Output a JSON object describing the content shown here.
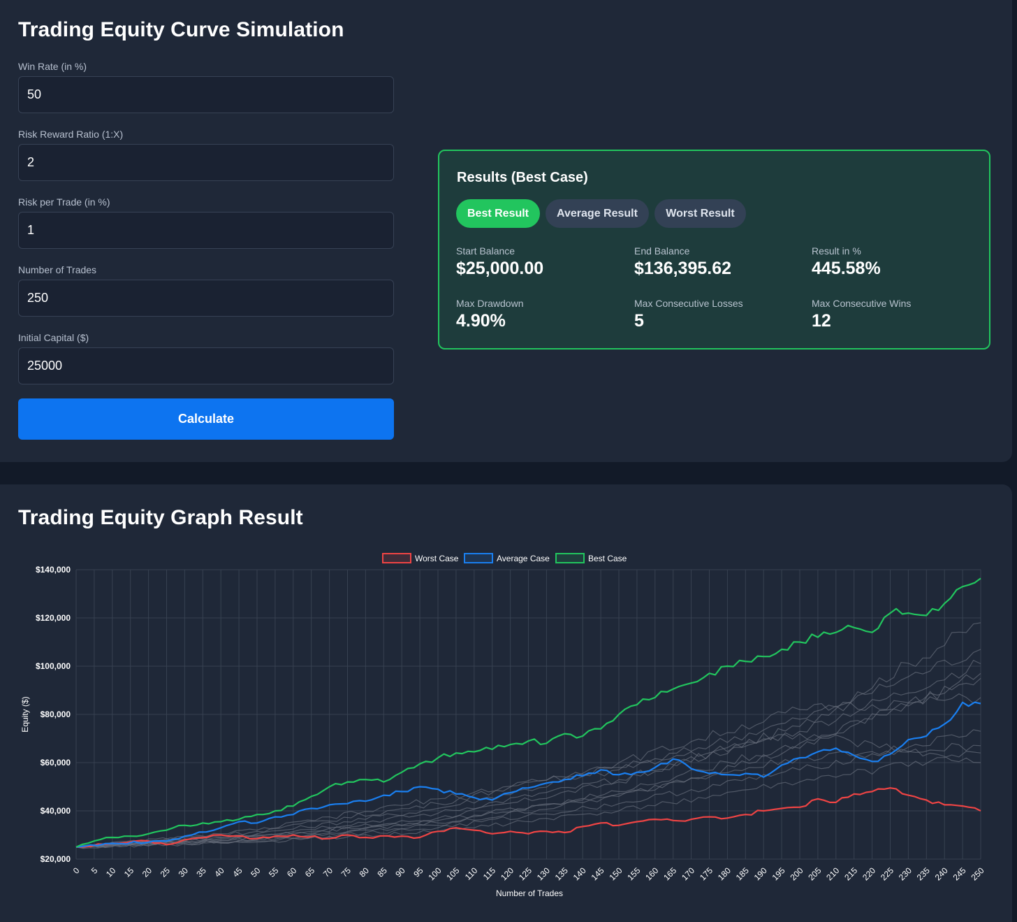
{
  "form": {
    "title": "Trading Equity Curve Simulation",
    "fields": [
      {
        "label": "Win Rate (in %)",
        "value": "50"
      },
      {
        "label": "Risk Reward Ratio (1:X)",
        "value": "2"
      },
      {
        "label": "Risk per Trade (in %)",
        "value": "1"
      },
      {
        "label": "Number of Trades",
        "value": "250"
      },
      {
        "label": "Initial Capital ($)",
        "value": "25000"
      }
    ],
    "calculate_label": "Calculate"
  },
  "results": {
    "title": "Results (Best Case)",
    "tabs": [
      "Best Result",
      "Average Result",
      "Worst Result"
    ],
    "active_tab": 0,
    "stats": {
      "start_balance": {
        "label": "Start Balance",
        "value": "$25,000.00"
      },
      "end_balance": {
        "label": "End Balance",
        "value": "$136,395.62"
      },
      "result_pct": {
        "label": "Result in %",
        "value": "445.58%"
      },
      "max_drawdown": {
        "label": "Max Drawdown",
        "value": "4.90%"
      },
      "max_consec_losses": {
        "label": "Max Consecutive Losses",
        "value": "5"
      },
      "max_consec_wins": {
        "label": "Max Consecutive Wins",
        "value": "12"
      }
    },
    "accent_color": "#22c55e"
  },
  "graph": {
    "title": "Trading Equity Graph Result"
  },
  "chart_data": {
    "type": "line",
    "xlabel": "Number of Trades",
    "ylabel": "Equity ($)",
    "xlim": [
      0,
      250
    ],
    "ylim": [
      20000,
      140000
    ],
    "x_ticks": [
      0,
      5,
      10,
      15,
      20,
      25,
      30,
      35,
      40,
      45,
      50,
      55,
      60,
      65,
      70,
      75,
      80,
      85,
      90,
      95,
      100,
      105,
      110,
      115,
      120,
      125,
      130,
      135,
      140,
      145,
      150,
      155,
      160,
      165,
      170,
      175,
      180,
      185,
      190,
      195,
      200,
      205,
      210,
      215,
      220,
      225,
      230,
      235,
      240,
      245,
      250
    ],
    "y_ticks": [
      {
        "value": 20000,
        "label": "$20,000"
      },
      {
        "value": 40000,
        "label": "$40,000"
      },
      {
        "value": 60000,
        "label": "$60,000"
      },
      {
        "value": 80000,
        "label": "$80,000"
      },
      {
        "value": 100000,
        "label": "$100,000"
      },
      {
        "value": 120000,
        "label": "$120,000"
      },
      {
        "value": 140000,
        "label": "$140,000"
      }
    ],
    "grid": true,
    "legend_position": "top-center",
    "series": [
      {
        "name": "Worst Case",
        "color": "#ef4444",
        "x": [
          0,
          10,
          20,
          25,
          30,
          40,
          50,
          55,
          60,
          70,
          75,
          80,
          90,
          95,
          100,
          105,
          110,
          115,
          120,
          125,
          130,
          135,
          140,
          145,
          150,
          155,
          160,
          165,
          170,
          175,
          180,
          185,
          190,
          195,
          200,
          205,
          210,
          215,
          220,
          225,
          230,
          235,
          240,
          245,
          250
        ],
        "y": [
          25000,
          26500,
          27500,
          26000,
          28000,
          30000,
          28500,
          29500,
          30000,
          28500,
          30000,
          29000,
          29500,
          29000,
          31500,
          33000,
          32000,
          30500,
          31500,
          30500,
          31500,
          31000,
          33500,
          35000,
          34000,
          35500,
          36500,
          36000,
          36500,
          37500,
          37000,
          38500,
          40000,
          41000,
          41500,
          45000,
          43500,
          47000,
          48000,
          49500,
          46500,
          44500,
          42500,
          42000,
          40000
        ]
      },
      {
        "name": "Average Case",
        "color": "#1a7ff0",
        "x": [
          0,
          10,
          20,
          25,
          30,
          40,
          45,
          50,
          55,
          60,
          65,
          70,
          75,
          80,
          85,
          90,
          95,
          100,
          105,
          110,
          115,
          120,
          125,
          130,
          135,
          140,
          145,
          150,
          155,
          160,
          165,
          170,
          175,
          180,
          185,
          190,
          195,
          200,
          205,
          210,
          215,
          220,
          225,
          230,
          235,
          240,
          245,
          250
        ],
        "y": [
          25000,
          26500,
          27000,
          27500,
          29500,
          33000,
          35500,
          35000,
          37500,
          38500,
          41000,
          42500,
          43000,
          44000,
          46500,
          48000,
          50000,
          49000,
          47000,
          45500,
          44500,
          47500,
          49500,
          51500,
          53000,
          54500,
          57000,
          55000,
          56000,
          58000,
          61500,
          57500,
          55500,
          55000,
          55500,
          54000,
          59000,
          62000,
          64500,
          66000,
          63000,
          60500,
          63500,
          69500,
          71000,
          76000,
          85000,
          84500
        ]
      },
      {
        "name": "Best Case",
        "color": "#22c55e",
        "x": [
          0,
          5,
          10,
          15,
          20,
          25,
          30,
          35,
          40,
          45,
          50,
          55,
          60,
          65,
          70,
          75,
          80,
          85,
          90,
          95,
          100,
          105,
          110,
          115,
          120,
          125,
          130,
          135,
          140,
          145,
          150,
          155,
          160,
          165,
          170,
          175,
          180,
          185,
          190,
          195,
          200,
          205,
          210,
          215,
          220,
          225,
          230,
          235,
          240,
          245,
          250
        ],
        "y": [
          25000,
          27500,
          29000,
          29500,
          30500,
          32000,
          34000,
          35000,
          35500,
          36500,
          38500,
          40000,
          42000,
          46000,
          50000,
          52000,
          53000,
          52000,
          56000,
          59500,
          62000,
          64000,
          64500,
          65500,
          67500,
          69000,
          68000,
          72000,
          71000,
          74000,
          80000,
          84000,
          87000,
          90500,
          93000,
          97000,
          100000,
          102000,
          104000,
          107000,
          110000,
          112000,
          114000,
          116000,
          114000,
          122000,
          122000,
          121000,
          126000,
          133000,
          136400
        ]
      }
    ],
    "gray_series": [
      {
        "x": [
          0,
          50,
          100,
          150,
          200,
          250
        ],
        "y": [
          25000,
          29000,
          37000,
          52000,
          75000,
          118000
        ]
      },
      {
        "x": [
          0,
          50,
          100,
          150,
          200,
          250
        ],
        "y": [
          25000,
          30500,
          41000,
          57000,
          78000,
          107000
        ]
      },
      {
        "x": [
          0,
          50,
          100,
          150,
          200,
          250
        ],
        "y": [
          25000,
          28000,
          34000,
          46000,
          66000,
          97000
        ]
      },
      {
        "x": [
          0,
          50,
          100,
          150,
          200,
          250
        ],
        "y": [
          25000,
          31500,
          43000,
          60000,
          82000,
          87000
        ]
      },
      {
        "x": [
          0,
          50,
          100,
          150,
          200,
          250
        ],
        "y": [
          25000,
          27500,
          33000,
          43000,
          57000,
          73000
        ]
      },
      {
        "x": [
          0,
          50,
          100,
          150,
          200,
          250
        ],
        "y": [
          25000,
          29500,
          36000,
          47000,
          62000,
          67000
        ]
      },
      {
        "x": [
          0,
          50,
          100,
          150,
          200,
          250
        ],
        "y": [
          25000,
          32000,
          45000,
          58000,
          72000,
          60000
        ]
      },
      {
        "x": [
          0,
          50,
          100,
          150,
          200,
          250
        ],
        "y": [
          25000,
          28500,
          35000,
          48000,
          68000,
          95000
        ]
      },
      {
        "x": [
          0,
          50,
          100,
          150,
          200,
          250
        ],
        "y": [
          25000,
          30000,
          39000,
          53000,
          73000,
          101000
        ]
      },
      {
        "x": [
          0,
          50,
          100,
          150,
          200,
          250
        ],
        "y": [
          25000,
          27000,
          31500,
          40000,
          52000,
          64000
        ]
      }
    ],
    "gray_color": "#6b7280"
  }
}
